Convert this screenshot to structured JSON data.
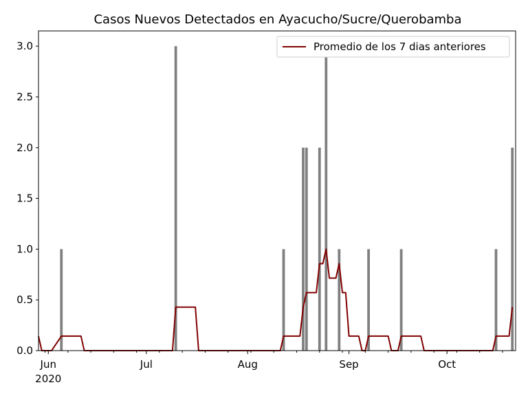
{
  "chart_data": {
    "type": "bar",
    "title": "Casos Nuevos Detectados en Ayacucho/Sucre/Querobamba",
    "xlabel": "",
    "ylabel": "",
    "x_type": "date",
    "xlim": [
      "2020-05-29",
      "2020-10-22"
    ],
    "ylim": [
      0,
      3.15
    ],
    "y_ticks": [
      0.0,
      0.5,
      1.0,
      1.5,
      2.0,
      2.5,
      3.0
    ],
    "y_tick_labels": [
      "0.0",
      "0.5",
      "1.0",
      "1.5",
      "2.0",
      "2.5",
      "3.0"
    ],
    "x_ticks": [
      {
        "date": "2020-06-01",
        "label": "Jun",
        "sublabel": "2020"
      },
      {
        "date": "2020-07-01",
        "label": "Jul",
        "sublabel": ""
      },
      {
        "date": "2020-08-01",
        "label": "Aug",
        "sublabel": ""
      },
      {
        "date": "2020-09-01",
        "label": "Sep",
        "sublabel": ""
      },
      {
        "date": "2020-10-01",
        "label": "Oct",
        "sublabel": ""
      }
    ],
    "grid": false,
    "legend_position": "top-right",
    "series": [
      {
        "kind": "bar",
        "color": "#808080",
        "points": [
          {
            "x": "2020-06-05",
            "y": 1
          },
          {
            "x": "2020-07-10",
            "y": 3
          },
          {
            "x": "2020-08-12",
            "y": 1
          },
          {
            "x": "2020-08-18",
            "y": 2
          },
          {
            "x": "2020-08-19",
            "y": 2
          },
          {
            "x": "2020-08-23",
            "y": 2
          },
          {
            "x": "2020-08-25",
            "y": 3
          },
          {
            "x": "2020-08-29",
            "y": 1
          },
          {
            "x": "2020-09-07",
            "y": 1
          },
          {
            "x": "2020-09-17",
            "y": 1
          },
          {
            "x": "2020-10-16",
            "y": 1
          },
          {
            "x": "2020-10-21",
            "y": 2
          }
        ]
      },
      {
        "kind": "line",
        "name": "Promedio de los 7 dias anteriores",
        "color": "#800000",
        "points": [
          {
            "x": "2020-05-29",
            "y": 0.1429
          },
          {
            "x": "2020-05-30",
            "y": 0.0
          },
          {
            "x": "2020-06-02",
            "y": 0.0
          },
          {
            "x": "2020-06-05",
            "y": 0.1429
          },
          {
            "x": "2020-06-11",
            "y": 0.1429
          },
          {
            "x": "2020-06-12",
            "y": 0.0
          },
          {
            "x": "2020-07-09",
            "y": 0.0
          },
          {
            "x": "2020-07-10",
            "y": 0.4286
          },
          {
            "x": "2020-07-16",
            "y": 0.4286
          },
          {
            "x": "2020-07-17",
            "y": 0.0
          },
          {
            "x": "2020-08-11",
            "y": 0.0
          },
          {
            "x": "2020-08-12",
            "y": 0.1429
          },
          {
            "x": "2020-08-17",
            "y": 0.1429
          },
          {
            "x": "2020-08-18",
            "y": 0.4286
          },
          {
            "x": "2020-08-19",
            "y": 0.5714
          },
          {
            "x": "2020-08-22",
            "y": 0.5714
          },
          {
            "x": "2020-08-23",
            "y": 0.8571
          },
          {
            "x": "2020-08-24",
            "y": 0.8571
          },
          {
            "x": "2020-08-25",
            "y": 1.0
          },
          {
            "x": "2020-08-26",
            "y": 0.7143
          },
          {
            "x": "2020-08-28",
            "y": 0.7143
          },
          {
            "x": "2020-08-29",
            "y": 0.8571
          },
          {
            "x": "2020-08-30",
            "y": 0.5714
          },
          {
            "x": "2020-08-31",
            "y": 0.5714
          },
          {
            "x": "2020-09-01",
            "y": 0.1429
          },
          {
            "x": "2020-09-04",
            "y": 0.1429
          },
          {
            "x": "2020-09-05",
            "y": 0.0
          },
          {
            "x": "2020-09-06",
            "y": 0.0
          },
          {
            "x": "2020-09-07",
            "y": 0.1429
          },
          {
            "x": "2020-09-13",
            "y": 0.1429
          },
          {
            "x": "2020-09-14",
            "y": 0.0
          },
          {
            "x": "2020-09-16",
            "y": 0.0
          },
          {
            "x": "2020-09-17",
            "y": 0.1429
          },
          {
            "x": "2020-09-23",
            "y": 0.1429
          },
          {
            "x": "2020-09-24",
            "y": 0.0
          },
          {
            "x": "2020-10-15",
            "y": 0.0
          },
          {
            "x": "2020-10-16",
            "y": 0.1429
          },
          {
            "x": "2020-10-20",
            "y": 0.1429
          },
          {
            "x": "2020-10-21",
            "y": 0.4286
          }
        ]
      }
    ]
  }
}
